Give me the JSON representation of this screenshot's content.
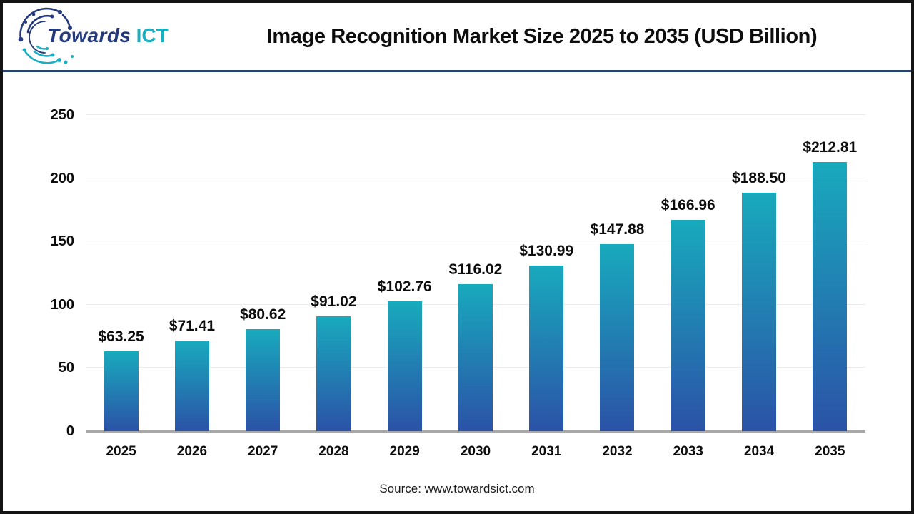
{
  "header": {
    "logo": {
      "part1": "Towards",
      "part2": "ICT"
    },
    "title": "Image Recognition Market Size 2025 to 2035 (USD Billion)"
  },
  "chart_data": {
    "type": "bar",
    "title": "Image Recognition Market Size 2025 to 2035 (USD Billion)",
    "categories": [
      "2025",
      "2026",
      "2027",
      "2028",
      "2029",
      "2030",
      "2031",
      "2032",
      "2033",
      "2034",
      "2035"
    ],
    "values": [
      63.25,
      71.41,
      80.62,
      91.02,
      102.76,
      116.02,
      130.99,
      147.88,
      166.96,
      188.5,
      212.81
    ],
    "value_labels": [
      "$63.25",
      "$71.41",
      "$80.62",
      "$91.02",
      "$102.76",
      "$116.02",
      "$130.99",
      "$147.88",
      "$166.96",
      "$188.50",
      "$212.81"
    ],
    "xlabel": "",
    "ylabel": "",
    "ylim": [
      0,
      250
    ],
    "yticks": [
      0,
      50,
      100,
      150,
      200,
      250
    ],
    "grid": true,
    "legend_position": "none",
    "bar_color_top": "#18aabd",
    "bar_color_bottom": "#2b52a7",
    "axis_color": "#a8a8a8",
    "gridline_color": "#ececec"
  },
  "footer": {
    "source": "Source: www.towardsict.com"
  }
}
